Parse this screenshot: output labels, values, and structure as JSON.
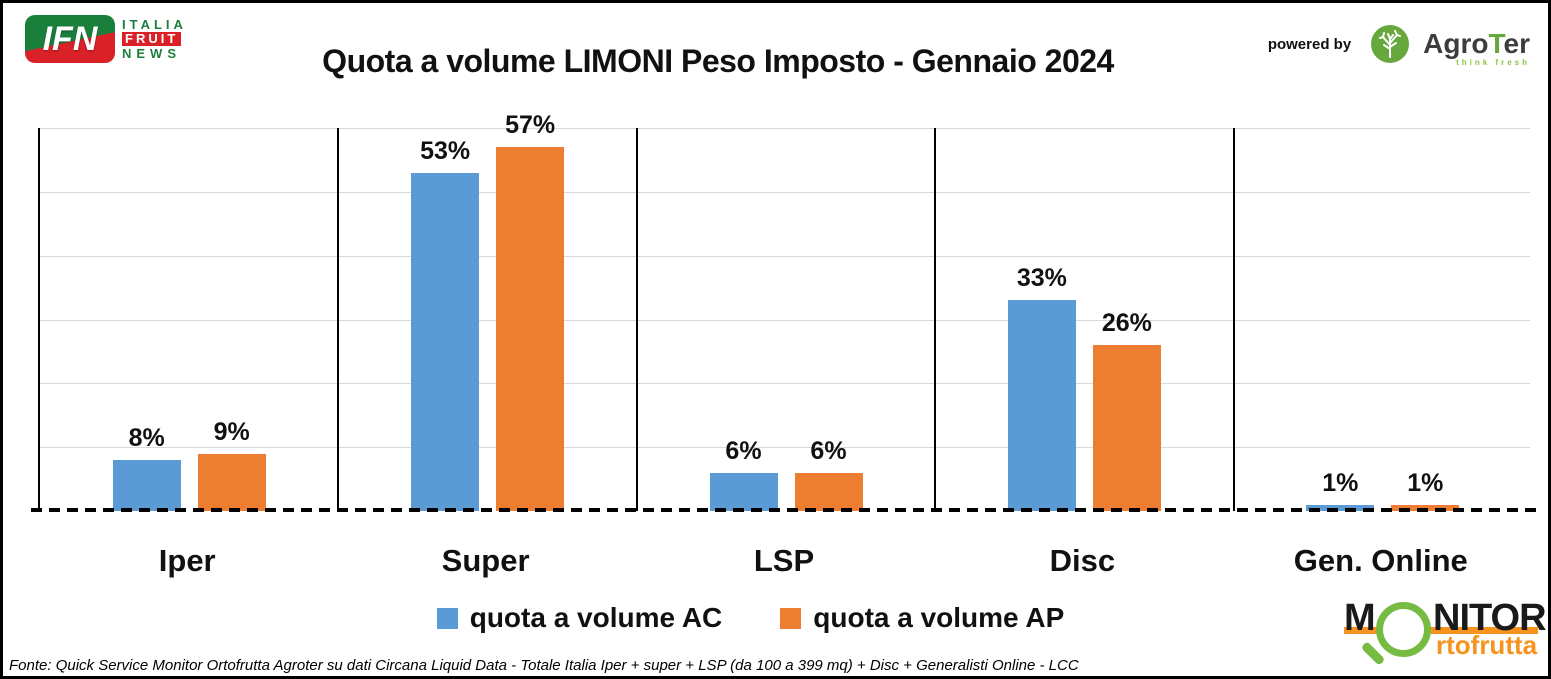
{
  "chart_data": {
    "type": "bar",
    "title": "Quota a volume LIMONI Peso Imposto - Gennaio 2024",
    "categories": [
      "Iper",
      "Super",
      "LSP",
      "Disc",
      "Gen. Online"
    ],
    "series": [
      {
        "name": "quota a volume AC",
        "color": "#5B9BD5",
        "values": [
          8,
          53,
          6,
          33,
          1
        ],
        "labels": [
          "8%",
          "53%",
          "6%",
          "33%",
          "1%"
        ]
      },
      {
        "name": "quota a volume AP",
        "color": "#ED7D31",
        "values": [
          9,
          57,
          6,
          26,
          1
        ],
        "labels": [
          "9%",
          "57%",
          "6%",
          "26%",
          "1%"
        ]
      }
    ],
    "ylim": [
      0,
      60
    ],
    "grid": {
      "show": true,
      "step": 10,
      "color": "#d9d9d9"
    },
    "separator_color": "#000000",
    "baseline_style": "dashed-black",
    "legend_position": "bottom",
    "y_axis_labels_shown": false
  },
  "logos": {
    "ifn": {
      "badge": "IFN",
      "line1": "ITALIA",
      "line2": "FRUIT",
      "line3": "NEWS",
      "green": "#1b7f3c",
      "red": "#da2128"
    },
    "agroter": {
      "powered_by": "powered by",
      "name_agro": "Agro",
      "name_t": "T",
      "name_er": "er",
      "tagline": "think fresh",
      "green": "#67a83d",
      "dark": "#3d3d3f"
    },
    "monitor": {
      "m": "M",
      "nitor": "NITOR",
      "sub": "rtofrutta",
      "green": "#76bc43",
      "orange": "#f6921e"
    }
  },
  "footer": {
    "source": "Fonte: Quick Service Monitor Ortofrutta Agroter su dati Circana Liquid Data - Totale Italia Iper + super + LSP (da 100 a 399 mq) + Disc + Generalisti Online - LCC"
  }
}
